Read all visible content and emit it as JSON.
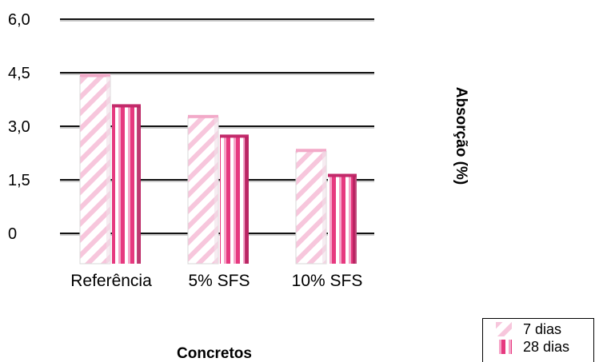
{
  "chart_data": {
    "type": "bar",
    "categories": [
      "Referência",
      "5% SFS",
      "10% SFS"
    ],
    "series": [
      {
        "name": "7 dias",
        "values": [
          4.4,
          3.25,
          2.3
        ],
        "color": "#f7c6dc"
      },
      {
        "name": "28 dias",
        "values": [
          3.55,
          2.7,
          1.6
        ],
        "color": "#e6397f"
      }
    ],
    "ylim": [
      0,
      6.0
    ],
    "yticks": [
      0,
      1.5,
      3.0,
      4.5,
      6.0
    ],
    "ytick_labels": [
      "0",
      "1,5",
      "3,0",
      "4,5",
      "6,0"
    ],
    "xlabel": "Concretos",
    "ylabel": "Absorção (%)",
    "grid": true,
    "legend_position": "bottom-right"
  }
}
